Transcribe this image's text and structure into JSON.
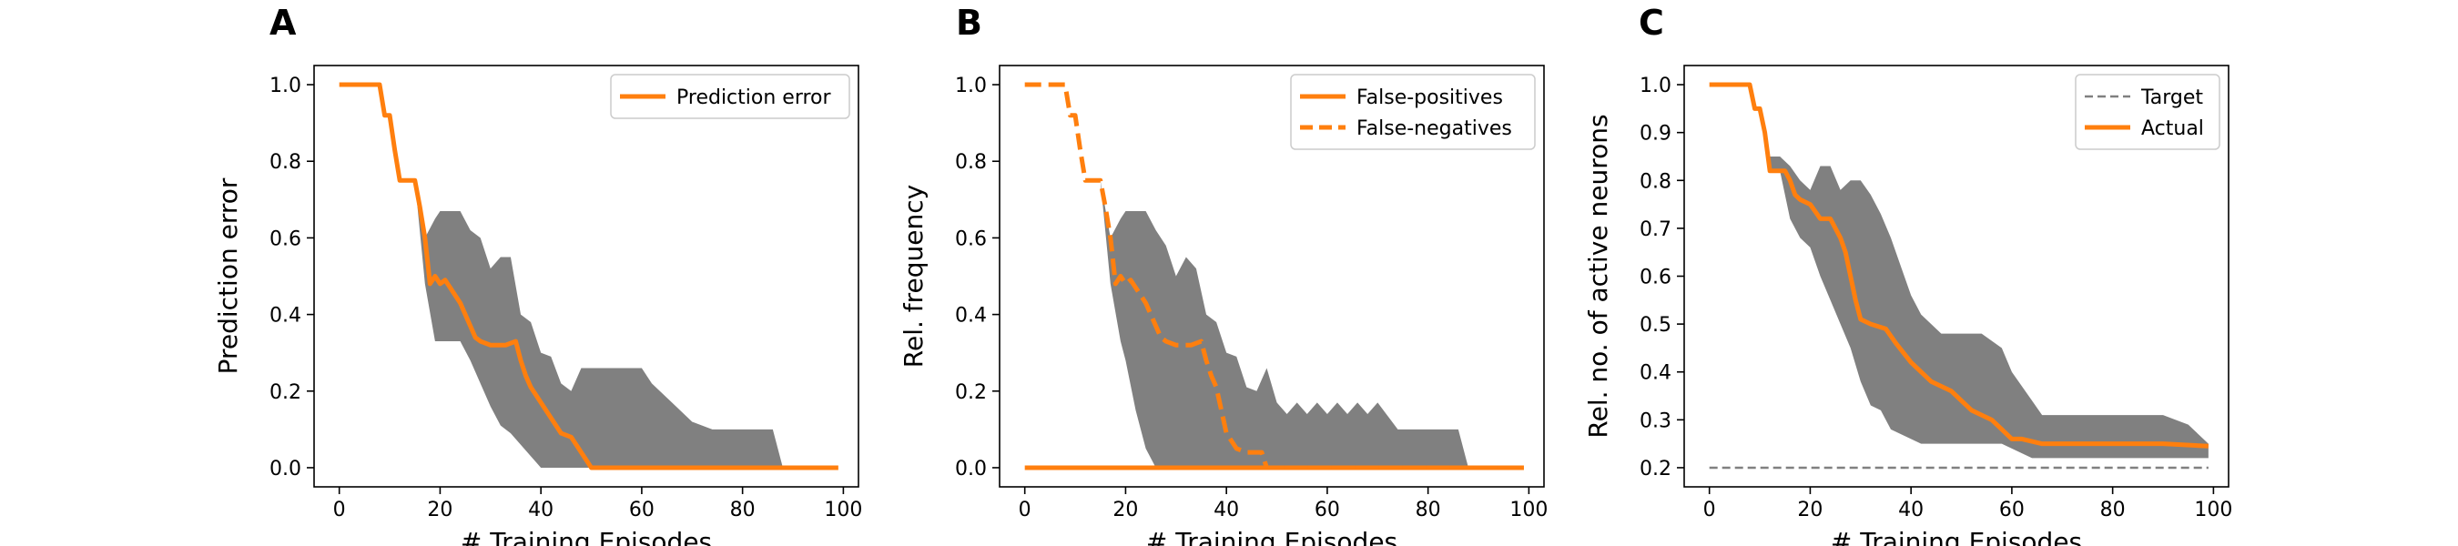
{
  "chart_data": [
    {
      "panel": "A",
      "type": "line",
      "xlabel": "# Training Episodes",
      "ylabel": "Prediction error",
      "xlim": [
        -5,
        103
      ],
      "ylim": [
        -0.05,
        1.05
      ],
      "xticks": [
        0,
        20,
        40,
        60,
        80,
        100
      ],
      "yticks": [
        0.0,
        0.2,
        0.4,
        0.6,
        0.8,
        1.0
      ],
      "ytick_labels": [
        "0.0",
        "0.2",
        "0.4",
        "0.6",
        "0.8",
        "1.0"
      ],
      "legend_position": "upper-right",
      "colors": {
        "series": "#ff7f0e",
        "band": "#808080"
      },
      "series": [
        {
          "name": "Prediction error",
          "style": "solid",
          "x": [
            0,
            8,
            9,
            10,
            11,
            12,
            13,
            15,
            16,
            17,
            18,
            19,
            20,
            21,
            22,
            24,
            25,
            26,
            27,
            28,
            30,
            33,
            35,
            36,
            37,
            38,
            40,
            42,
            44,
            46,
            48,
            50,
            60,
            70,
            80,
            90,
            99
          ],
          "y": [
            1.0,
            1.0,
            0.92,
            0.92,
            0.83,
            0.75,
            0.75,
            0.75,
            0.68,
            0.6,
            0.48,
            0.5,
            0.48,
            0.49,
            0.47,
            0.43,
            0.4,
            0.37,
            0.34,
            0.33,
            0.32,
            0.32,
            0.33,
            0.28,
            0.24,
            0.21,
            0.17,
            0.13,
            0.09,
            0.08,
            0.04,
            0.0,
            0.0,
            0.0,
            0.0,
            0.0,
            0.0
          ]
        }
      ],
      "band": {
        "x": [
          15,
          17,
          19,
          20,
          22,
          24,
          26,
          28,
          30,
          32,
          34,
          36,
          38,
          40,
          42,
          44,
          46,
          48,
          50,
          55,
          60,
          62,
          66,
          70,
          74,
          78,
          82,
          86,
          88
        ],
        "upper": [
          0.75,
          0.6,
          0.65,
          0.67,
          0.67,
          0.67,
          0.62,
          0.6,
          0.52,
          0.55,
          0.55,
          0.4,
          0.38,
          0.3,
          0.29,
          0.22,
          0.2,
          0.26,
          0.26,
          0.26,
          0.26,
          0.22,
          0.17,
          0.12,
          0.1,
          0.1,
          0.1,
          0.1,
          0.0
        ],
        "lower": [
          0.75,
          0.48,
          0.33,
          0.33,
          0.33,
          0.33,
          0.28,
          0.22,
          0.16,
          0.11,
          0.09,
          0.06,
          0.03,
          0.0,
          0.0,
          0.0,
          0.0,
          0.0,
          0.0,
          0.0,
          0.0,
          0.0,
          0.0,
          0.0,
          0.0,
          0.0,
          0.0,
          0.0,
          0.0
        ]
      }
    },
    {
      "panel": "B",
      "type": "line",
      "xlabel": "# Training Episodes",
      "ylabel": "Rel. frequency",
      "xlim": [
        -5,
        103
      ],
      "ylim": [
        -0.05,
        1.05
      ],
      "xticks": [
        0,
        20,
        40,
        60,
        80,
        100
      ],
      "yticks": [
        0.0,
        0.2,
        0.4,
        0.6,
        0.8,
        1.0
      ],
      "ytick_labels": [
        "0.0",
        "0.2",
        "0.4",
        "0.6",
        "0.8",
        "1.0"
      ],
      "legend_position": "upper-right",
      "colors": {
        "series": "#ff7f0e",
        "band": "#808080"
      },
      "series": [
        {
          "name": "False-positives",
          "style": "solid",
          "x": [
            0,
            99
          ],
          "y": [
            0.0,
            0.0
          ]
        },
        {
          "name": "False-negatives",
          "style": "dashed",
          "x": [
            0,
            8,
            9,
            10,
            11,
            12,
            13,
            15,
            16,
            17,
            18,
            19,
            20,
            21,
            22,
            24,
            25,
            26,
            27,
            28,
            30,
            33,
            35,
            36,
            37,
            38,
            40,
            42,
            44,
            46,
            47,
            48,
            50,
            99
          ],
          "y": [
            1.0,
            1.0,
            0.92,
            0.92,
            0.83,
            0.75,
            0.75,
            0.75,
            0.68,
            0.6,
            0.48,
            0.5,
            0.48,
            0.49,
            0.47,
            0.43,
            0.4,
            0.37,
            0.34,
            0.33,
            0.32,
            0.32,
            0.33,
            0.28,
            0.24,
            0.21,
            0.09,
            0.05,
            0.04,
            0.04,
            0.04,
            0.0,
            0.0,
            0.0
          ]
        }
      ],
      "band": {
        "x": [
          15,
          17,
          19,
          20,
          22,
          24,
          26,
          28,
          30,
          32,
          34,
          36,
          38,
          40,
          42,
          44,
          46,
          48,
          50,
          52,
          54,
          56,
          58,
          60,
          62,
          64,
          66,
          68,
          70,
          74,
          78,
          82,
          86,
          88
        ],
        "upper": [
          0.75,
          0.6,
          0.65,
          0.67,
          0.67,
          0.67,
          0.62,
          0.58,
          0.5,
          0.55,
          0.52,
          0.4,
          0.38,
          0.3,
          0.29,
          0.21,
          0.2,
          0.26,
          0.17,
          0.14,
          0.17,
          0.14,
          0.17,
          0.14,
          0.17,
          0.14,
          0.17,
          0.14,
          0.17,
          0.1,
          0.1,
          0.1,
          0.1,
          0.0
        ],
        "lower": [
          0.75,
          0.48,
          0.33,
          0.28,
          0.15,
          0.05,
          0.0,
          0.0,
          0.0,
          0.0,
          0.0,
          0.0,
          0.0,
          0.0,
          0.0,
          0.0,
          0.0,
          0.0,
          0.0,
          0.0,
          0.0,
          0.0,
          0.0,
          0.0,
          0.0,
          0.0,
          0.0,
          0.0,
          0.0,
          0.0,
          0.0,
          0.0,
          0.0,
          0.0
        ]
      }
    },
    {
      "panel": "C",
      "type": "line",
      "xlabel": "# Training Episodes",
      "ylabel": "Rel. no. of active neurons",
      "xlim": [
        -5,
        103
      ],
      "ylim": [
        0.16,
        1.04
      ],
      "xticks": [
        0,
        20,
        40,
        60,
        80,
        100
      ],
      "yticks": [
        0.2,
        0.3,
        0.4,
        0.5,
        0.6,
        0.7,
        0.8,
        0.9,
        1.0
      ],
      "ytick_labels": [
        "0.2",
        "0.3",
        "0.4",
        "0.5",
        "0.6",
        "0.7",
        "0.8",
        "0.9",
        "1.0"
      ],
      "legend_position": "upper-right",
      "colors": {
        "series": "#ff7f0e",
        "band": "#808080",
        "target": "#808080"
      },
      "series": [
        {
          "name": "Target",
          "style": "dashed-gray",
          "x": [
            0,
            99
          ],
          "y": [
            0.2,
            0.2
          ]
        },
        {
          "name": "Actual",
          "style": "solid",
          "x": [
            0,
            8,
            9,
            10,
            11,
            12,
            15,
            16,
            17,
            18,
            20,
            22,
            24,
            26,
            27,
            28,
            29,
            30,
            32,
            35,
            37,
            40,
            42,
            44,
            46,
            48,
            50,
            52,
            54,
            56,
            58,
            60,
            62,
            66,
            70,
            80,
            90,
            99
          ],
          "y": [
            1.0,
            1.0,
            0.95,
            0.95,
            0.9,
            0.82,
            0.82,
            0.8,
            0.77,
            0.76,
            0.75,
            0.72,
            0.72,
            0.68,
            0.65,
            0.6,
            0.55,
            0.51,
            0.5,
            0.49,
            0.46,
            0.42,
            0.4,
            0.38,
            0.37,
            0.36,
            0.34,
            0.32,
            0.31,
            0.3,
            0.28,
            0.26,
            0.26,
            0.25,
            0.25,
            0.25,
            0.25,
            0.245
          ]
        }
      ],
      "band": {
        "x": [
          10,
          12,
          14,
          16,
          18,
          20,
          22,
          24,
          26,
          28,
          30,
          32,
          34,
          36,
          38,
          40,
          42,
          44,
          46,
          48,
          50,
          54,
          58,
          60,
          64,
          66,
          70,
          80,
          90,
          95,
          99
        ],
        "upper": [
          0.95,
          0.85,
          0.85,
          0.83,
          0.8,
          0.78,
          0.83,
          0.83,
          0.78,
          0.8,
          0.8,
          0.77,
          0.73,
          0.68,
          0.62,
          0.56,
          0.52,
          0.5,
          0.48,
          0.48,
          0.48,
          0.48,
          0.45,
          0.4,
          0.34,
          0.31,
          0.31,
          0.31,
          0.31,
          0.29,
          0.25
        ],
        "lower": [
          0.95,
          0.82,
          0.82,
          0.72,
          0.68,
          0.66,
          0.6,
          0.55,
          0.5,
          0.45,
          0.38,
          0.33,
          0.32,
          0.28,
          0.27,
          0.26,
          0.25,
          0.25,
          0.25,
          0.25,
          0.25,
          0.25,
          0.25,
          0.24,
          0.22,
          0.22,
          0.22,
          0.22,
          0.22,
          0.22,
          0.22
        ]
      }
    }
  ]
}
